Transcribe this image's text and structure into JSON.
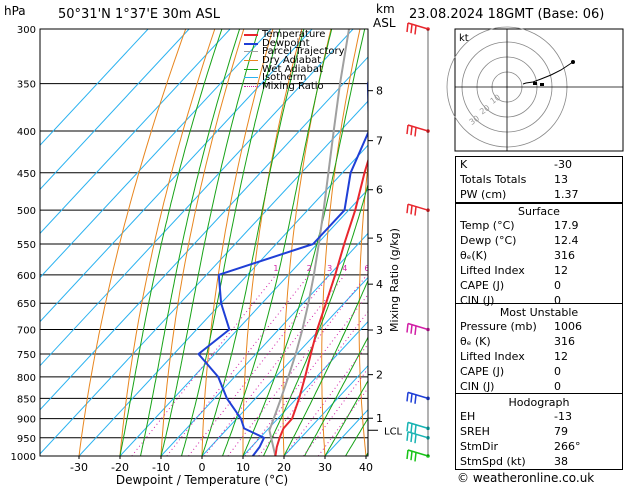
{
  "header": {
    "pressure_unit": "hPa",
    "location": "50°31'N  1°37'E  30m  ASL",
    "alt_unit_top": "km",
    "alt_unit_bottom": "ASL",
    "datetime": "23.08.2024  18GMT  (Base: 06)"
  },
  "legend": [
    "Temperature",
    "Dewpoint",
    "Parcel Trajectory",
    "Dry Adiabat",
    "Wet Adiabat",
    "Isotherm",
    "Mixing Ratio"
  ],
  "colors": {
    "temperature": "#e8262d",
    "dewpoint": "#1f3fd6",
    "parcel": "#a0a0a0",
    "dry_adiabat": "#e8861f",
    "wet_adiabat": "#17a317",
    "isotherm": "#2ab2f0",
    "mixing_ratio": "#d11fa6"
  },
  "chart_data": {
    "type": "line",
    "title": "50°31'N  1°37'E  30m  ASL",
    "xlabel": "Dewpoint / Temperature (°C)",
    "ylabel_right": "Mixing Ratio (g/kg)",
    "x_ticks": [
      -30,
      -20,
      -10,
      0,
      10,
      20,
      30,
      40
    ],
    "pressure_levels": [
      300,
      350,
      400,
      450,
      500,
      550,
      600,
      650,
      700,
      750,
      800,
      850,
      900,
      950,
      1000
    ],
    "km_ticks": [
      {
        "label": "8",
        "p": 357
      },
      {
        "label": "7",
        "p": 411
      },
      {
        "label": "6",
        "p": 472
      },
      {
        "label": "5",
        "p": 541
      },
      {
        "label": "4",
        "p": 616
      },
      {
        "label": "3",
        "p": 701
      },
      {
        "label": "2",
        "p": 795
      },
      {
        "label": "1",
        "p": 899
      }
    ],
    "lcl": {
      "label": "LCL",
      "p": 930
    },
    "mixing_ratio_labels": [
      "1",
      "2",
      "3",
      "4",
      "6",
      "8",
      "10",
      "15",
      "20",
      "25"
    ],
    "series": [
      {
        "name": "Temperature",
        "points": [
          [
            1000,
            17.9
          ],
          [
            975,
            16.2
          ],
          [
            950,
            14.8
          ],
          [
            925,
            13.6
          ],
          [
            900,
            13.5
          ],
          [
            850,
            10.6
          ],
          [
            800,
            7.2
          ],
          [
            750,
            3.4
          ],
          [
            700,
            -0.6
          ],
          [
            650,
            -4.4
          ],
          [
            600,
            -8.6
          ],
          [
            550,
            -13.4
          ],
          [
            500,
            -18.4
          ],
          [
            450,
            -24.6
          ],
          [
            400,
            -31.0
          ],
          [
            350,
            -39.8
          ],
          [
            300,
            -48.6
          ]
        ]
      },
      {
        "name": "Dewpoint",
        "points": [
          [
            1000,
            12.4
          ],
          [
            975,
            12.0
          ],
          [
            950,
            11.0
          ],
          [
            925,
            4.0
          ],
          [
            900,
            1.0
          ],
          [
            850,
            -7.0
          ],
          [
            800,
            -14.0
          ],
          [
            750,
            -24.0
          ],
          [
            700,
            -22.0
          ],
          [
            650,
            -30.0
          ],
          [
            600,
            -37.0
          ],
          [
            550,
            -21.0
          ],
          [
            500,
            -21.0
          ],
          [
            450,
            -28.0
          ],
          [
            400,
            -33.0
          ],
          [
            350,
            -44.0
          ],
          [
            300,
            -53.0
          ]
        ]
      },
      {
        "name": "Parcel Trajectory",
        "points": [
          [
            1000,
            17.9
          ],
          [
            930,
            10.6
          ],
          [
            900,
            9.0
          ],
          [
            850,
            6.2
          ],
          [
            800,
            3.1
          ],
          [
            750,
            -0.3
          ],
          [
            700,
            -4.2
          ],
          [
            650,
            -8.7
          ],
          [
            600,
            -13.8
          ],
          [
            550,
            -19.6
          ],
          [
            500,
            -26.1
          ],
          [
            450,
            -33.4
          ],
          [
            400,
            -41.6
          ],
          [
            350,
            -50.8
          ],
          [
            300,
            -61.0
          ]
        ]
      }
    ],
    "wind_barbs": [
      {
        "p": 300,
        "color": "#e8262d"
      },
      {
        "p": 400,
        "color": "#e8262d"
      },
      {
        "p": 500,
        "color": "#e8262d"
      },
      {
        "p": 700,
        "color": "#d11fa6"
      },
      {
        "p": 850,
        "color": "#1f3fd6"
      },
      {
        "p": 925,
        "color": "#17b3b3"
      },
      {
        "p": 950,
        "color": "#17b3b3"
      },
      {
        "p": 1000,
        "color": "#17c317"
      }
    ]
  },
  "hodograph": {
    "unit_label": "kt",
    "ring_labels": [
      "10",
      "20",
      "30"
    ]
  },
  "indices": {
    "rows": [
      {
        "k": "K",
        "v": "-30"
      },
      {
        "k": "Totals Totals",
        "v": "13"
      },
      {
        "k": "PW (cm)",
        "v": "1.37"
      }
    ]
  },
  "surface": {
    "title": "Surface",
    "rows": [
      {
        "k": "Temp (°C)",
        "v": "17.9"
      },
      {
        "k": "Dewp (°C)",
        "v": "12.4"
      },
      {
        "k": "θₑ(K)",
        "v": "316"
      },
      {
        "k": "Lifted Index",
        "v": "12"
      },
      {
        "k": "CAPE (J)",
        "v": "0"
      },
      {
        "k": "CIN (J)",
        "v": "0"
      }
    ]
  },
  "most_unstable": {
    "title": "Most Unstable",
    "rows": [
      {
        "k": "Pressure (mb)",
        "v": "1006"
      },
      {
        "k": "θₑ (K)",
        "v": "316"
      },
      {
        "k": "Lifted Index",
        "v": "12"
      },
      {
        "k": "CAPE (J)",
        "v": "0"
      },
      {
        "k": "CIN (J)",
        "v": "0"
      }
    ]
  },
  "hodo_box": {
    "title": "Hodograph",
    "rows": [
      {
        "k": "EH",
        "v": "-13"
      },
      {
        "k": "SREH",
        "v": "79"
      },
      {
        "k": "StmDir",
        "v": "266°"
      },
      {
        "k": "StmSpd (kt)",
        "v": "38"
      }
    ]
  },
  "copyright": "© weatheronline.co.uk"
}
